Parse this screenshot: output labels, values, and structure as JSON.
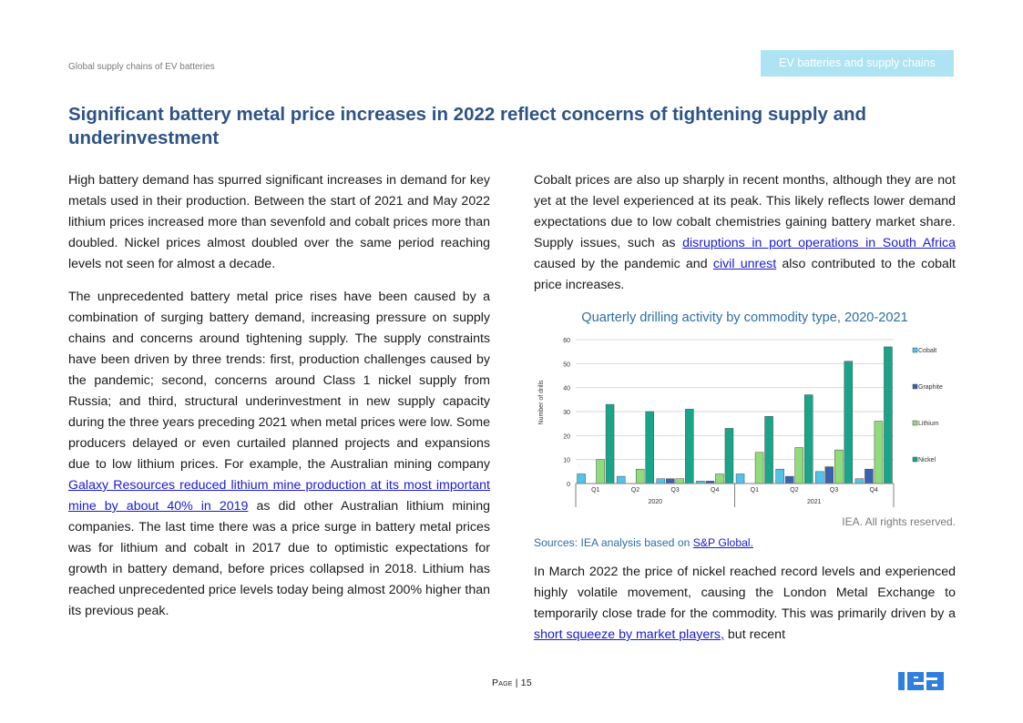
{
  "header": {
    "running_title": "Global supply chains of EV batteries",
    "section_tab": "EV batteries and supply chains"
  },
  "title": "Significant battery metal price increases in 2022 reflect concerns of tightening supply and underinvestment",
  "left_column": {
    "p1": "High battery demand has spurred significant increases in demand for key metals used in their production. Between the start of 2021 and May 2022 lithium prices increased more than sevenfold and cobalt prices more than doubled. Nickel prices almost doubled over the same period reaching levels not seen for almost a decade.",
    "p2_before_link": "The unprecedented battery metal price rises have been caused by a combination of surging battery demand, increasing pressure on supply chains and concerns around tightening supply. The supply constraints have been driven by three trends: first, production challenges caused by the pandemic; second, concerns around Class 1 nickel supply from Russia; and third, structural underinvestment in new supply capacity during the three years preceding 2021 when metal prices were low. Some producers delayed or even curtailed planned projects and expansions due to low lithium prices. For example, the Australian mining company ",
    "p2_link": "Galaxy Resources reduced lithium mine production at its most important mine by about 40% in 2019",
    "p2_after_link": " as did other Australian lithium mining companies. The last time there was a price surge in battery metal prices was for lithium and cobalt in 2017 due to optimistic expectations for growth in battery demand, before prices collapsed in 2018. Lithium has reached unprecedented price levels today being almost 200% higher than its previous peak."
  },
  "right_column": {
    "p1_part1": "Cobalt prices are also up sharply in recent months, although they are not yet at the level experienced at its peak. This likely reflects lower demand expectations due to low cobalt chemistries gaining battery market share. Supply issues, such as ",
    "p1_link1": "disruptions in port operations in South Africa",
    "p1_part2": " caused by the pandemic and ",
    "p1_link2": "civil unrest",
    "p1_part3": " also contributed to the cobalt price increases.",
    "p2_part1": "In March 2022 the price of nickel reached record levels and experienced highly volatile movement, causing the London Metal Exchange to temporarily close trade for the commodity. This was primarily driven by a ",
    "p2_link": "short squeeze by market players,",
    "p2_part2": " but recent"
  },
  "chart_data": {
    "type": "bar",
    "title": "Quarterly drilling activity by commodity type, 2020-2021",
    "ylabel": "Number of drills",
    "xlabel": "",
    "ylim": [
      0,
      60
    ],
    "yticks": [
      "0",
      "10",
      "20",
      "30",
      "40",
      "50",
      "60"
    ],
    "ytick_values": [
      0,
      10,
      20,
      30,
      40,
      50,
      60
    ],
    "grid": true,
    "categories": [
      "Q1",
      "Q2",
      "Q3",
      "Q4",
      "Q1",
      "Q2",
      "Q3",
      "Q4"
    ],
    "groups": [
      {
        "label": "2020",
        "span": 4
      },
      {
        "label": "2021",
        "span": 4
      }
    ],
    "legend_position": "right",
    "series": [
      {
        "name": "Cobalt",
        "color": "#4fc3ea",
        "values": [
          4,
          3,
          2,
          1,
          4,
          6,
          5,
          2
        ]
      },
      {
        "name": "Graphite",
        "color": "#3a62ae",
        "values": [
          0,
          0,
          2,
          1,
          0,
          3,
          7,
          6
        ]
      },
      {
        "name": "Lithium",
        "color": "#8fdc7b",
        "values": [
          10,
          6,
          2,
          4,
          13,
          15,
          14,
          26
        ]
      },
      {
        "name": "Nickel",
        "color": "#18a589",
        "values": [
          33,
          30,
          31,
          23,
          28,
          37,
          51,
          57
        ]
      }
    ],
    "credit": "IEA. All rights reserved."
  },
  "chart_source": {
    "prefix": "Sources: IEA analysis based on ",
    "link": "S&P Global."
  },
  "footer": {
    "page_label": "Page",
    "page_separator": "|",
    "page_number": "15",
    "logo_text": "iea"
  },
  "colors": {
    "title": "#2e5387",
    "link": "#1a1ad6",
    "tab_background": "#aee3f3",
    "chart_title": "#2e6ea5",
    "logo": "#2f7fe0"
  }
}
